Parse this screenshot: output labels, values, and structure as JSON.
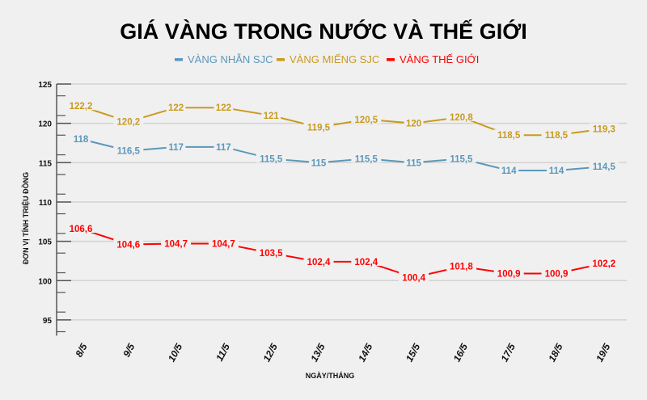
{
  "chart_data": {
    "type": "line",
    "title": "GIÁ VÀNG TRONG NƯỚC VÀ THẾ GIỚI",
    "xlabel": "NGÀY/THÁNG",
    "ylabel": "ĐƠN VỊ TÍNH TRIỆU ĐỒNG",
    "categories": [
      "8/5",
      "9/5",
      "10/5",
      "11/5",
      "12/5",
      "13/5",
      "14/5",
      "15/5",
      "16/5",
      "17/5",
      "18/5",
      "19/5"
    ],
    "ylim": [
      93,
      125
    ],
    "yticks": [
      95,
      100,
      105,
      110,
      115,
      120,
      125
    ],
    "grid": true,
    "legend_placement": "top",
    "series": [
      {
        "name": "VÀNG NHẪN SJC",
        "color": "#5b97ba",
        "values": [
          118,
          116.5,
          117,
          117,
          115.5,
          115,
          115.5,
          115,
          115.5,
          114,
          114,
          114.5
        ],
        "labels": [
          "118",
          "116,5",
          "117",
          "117",
          "115,5",
          "115",
          "115,5",
          "115",
          "115,5",
          "114",
          "114",
          "114,5"
        ]
      },
      {
        "name": "VÀNG MIẾNG SJC",
        "color": "#c99a1e",
        "values": [
          122.2,
          120.2,
          122,
          122,
          121,
          119.5,
          120.5,
          120,
          120.8,
          118.5,
          118.5,
          119.3
        ],
        "labels": [
          "122,2",
          "120,2",
          "122",
          "122",
          "121",
          "119,5",
          "120,5",
          "120",
          "120,8",
          "118,5",
          "118,5",
          "119,3"
        ]
      },
      {
        "name": "VÀNG THẾ GIỚI",
        "color": "#ff0000",
        "values": [
          106.6,
          104.6,
          104.7,
          104.7,
          103.5,
          102.4,
          102.4,
          100.4,
          101.8,
          100.9,
          100.9,
          102.2
        ],
        "labels": [
          "106,6",
          "104,6",
          "104,7",
          "104,7",
          "103,5",
          "102,4",
          "102,4",
          "100,4",
          "101,8",
          "100,9",
          "100,9",
          "102,2"
        ]
      }
    ]
  }
}
